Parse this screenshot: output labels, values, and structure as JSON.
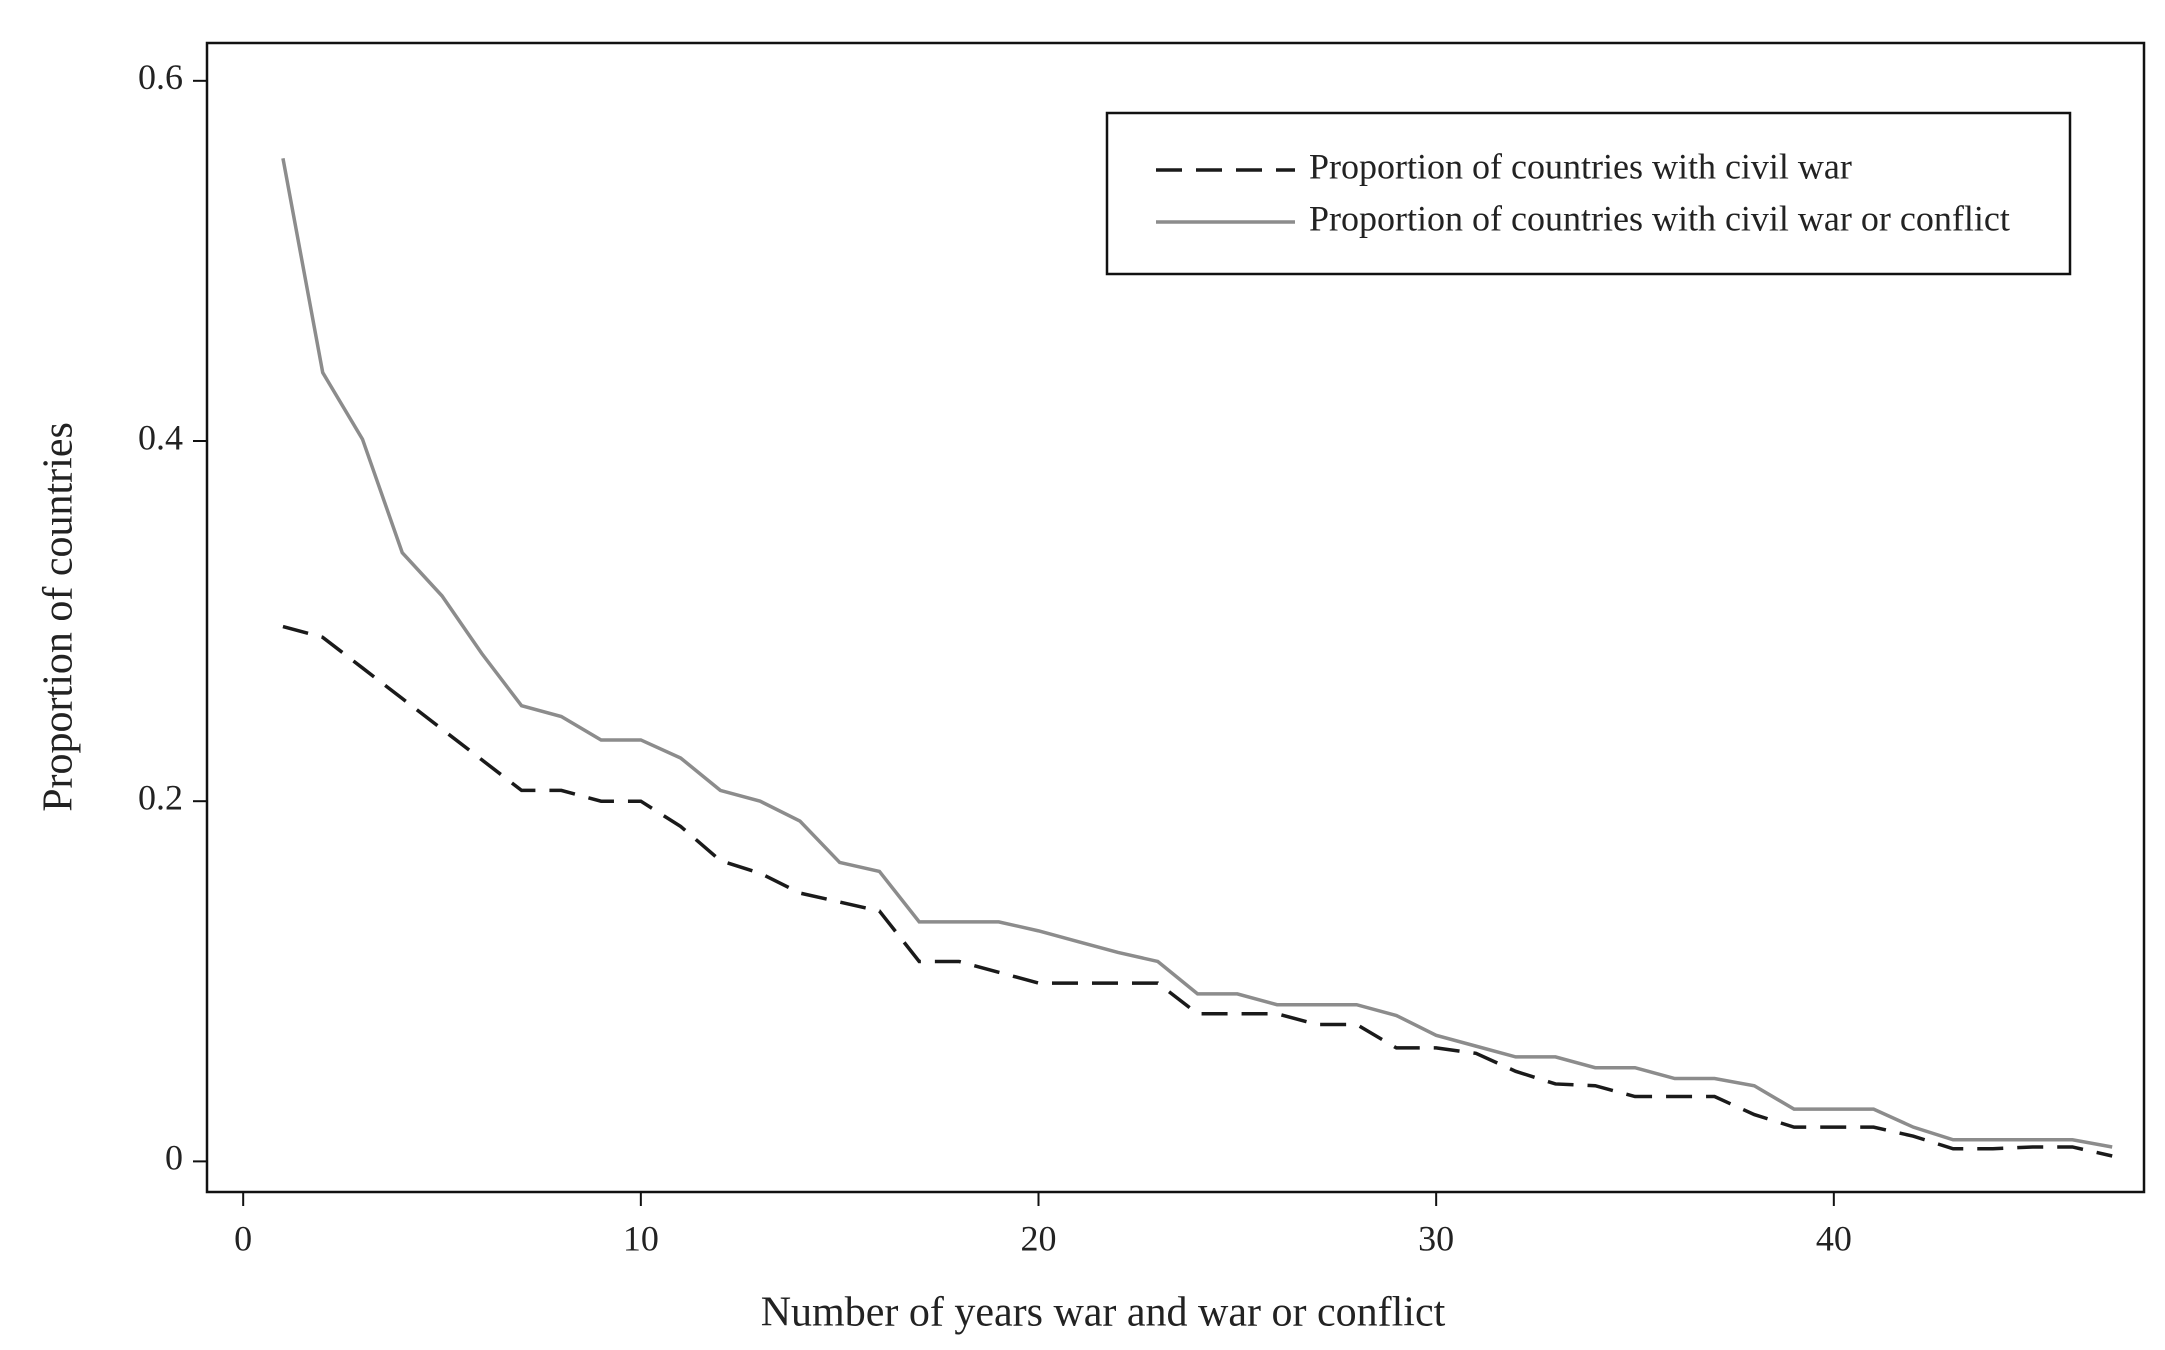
{
  "chart_data": {
    "type": "line",
    "xlabel": "Number of years war and war or conflict",
    "ylabel": "Proportion of countries",
    "x": [
      1,
      2,
      3,
      4,
      5,
      6,
      7,
      8,
      9,
      10,
      11,
      12,
      13,
      14,
      15,
      16,
      17,
      18,
      19,
      20,
      21,
      22,
      23,
      24,
      25,
      26,
      27,
      28,
      29,
      30,
      31,
      32,
      33,
      34,
      35,
      36,
      37,
      38,
      39,
      40,
      41,
      42,
      43,
      44,
      45,
      46,
      47
    ],
    "series": [
      {
        "name": "Proportion of countries with civil war",
        "color": "#1a1a1a",
        "dash": "dashed",
        "values": [
          0.297,
          0.291,
          0.274,
          0.257,
          0.24,
          0.223,
          0.206,
          0.206,
          0.2,
          0.2,
          0.186,
          0.167,
          0.16,
          0.149,
          0.144,
          0.139,
          0.111,
          0.111,
          0.105,
          0.099,
          0.099,
          0.099,
          0.099,
          0.082,
          0.082,
          0.082,
          0.076,
          0.076,
          0.063,
          0.063,
          0.06,
          0.05,
          0.043,
          0.042,
          0.036,
          0.036,
          0.036,
          0.026,
          0.019,
          0.019,
          0.019,
          0.014,
          0.007,
          0.007,
          0.008,
          0.008,
          0.003
        ]
      },
      {
        "name": "Proportion of countries with civil war or conflict",
        "color": "#8c8c8c",
        "dash": "solid",
        "values": [
          0.557,
          0.438,
          0.401,
          0.338,
          0.314,
          0.282,
          0.253,
          0.247,
          0.234,
          0.234,
          0.224,
          0.206,
          0.2,
          0.189,
          0.166,
          0.161,
          0.133,
          0.133,
          0.133,
          0.128,
          0.122,
          0.116,
          0.111,
          0.093,
          0.093,
          0.087,
          0.087,
          0.087,
          0.081,
          0.07,
          0.064,
          0.058,
          0.058,
          0.052,
          0.052,
          0.046,
          0.046,
          0.042,
          0.029,
          0.029,
          0.029,
          0.019,
          0.012,
          0.012,
          0.012,
          0.012,
          0.008
        ]
      }
    ],
    "xlim": [
      -0.91,
      47.8
    ],
    "ylim": [
      -0.017,
      0.621
    ],
    "xticks": [
      0,
      10,
      20,
      30,
      40
    ],
    "yticks": [
      0,
      0.2,
      0.4,
      0.6
    ],
    "legend": "upper right",
    "grid": false
  }
}
